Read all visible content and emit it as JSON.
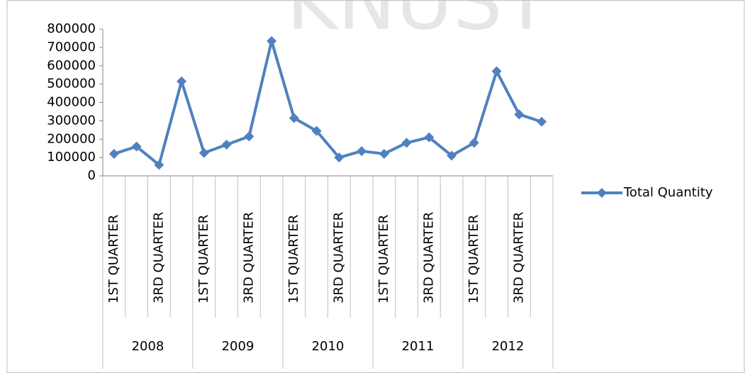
{
  "watermark": "KNUST",
  "chart_data": {
    "type": "line",
    "categories": [
      "1ST QUARTER",
      null,
      "3RD QUARTER",
      null,
      "1ST QUARTER",
      null,
      "3RD QUARTER",
      null,
      "1ST QUARTER",
      null,
      "3RD QUARTER",
      null,
      "1ST QUARTER",
      null,
      "3RD QUARTER",
      null,
      "1ST QUARTER",
      null,
      "3RD QUARTER",
      null
    ],
    "years": [
      "2008",
      "2009",
      "2010",
      "2011",
      "2012"
    ],
    "series": [
      {
        "name": "Total Quantity",
        "color": "#4f81bd",
        "values": [
          120000,
          160000,
          60000,
          515000,
          125000,
          170000,
          215000,
          735000,
          315000,
          245000,
          100000,
          135000,
          120000,
          180000,
          210000,
          110000,
          180000,
          570000,
          335000,
          295000
        ]
      }
    ],
    "ylim": [
      0,
      800000
    ],
    "yticks": [
      0,
      100000,
      200000,
      300000,
      400000,
      500000,
      600000,
      700000,
      800000
    ],
    "legend": "right"
  }
}
